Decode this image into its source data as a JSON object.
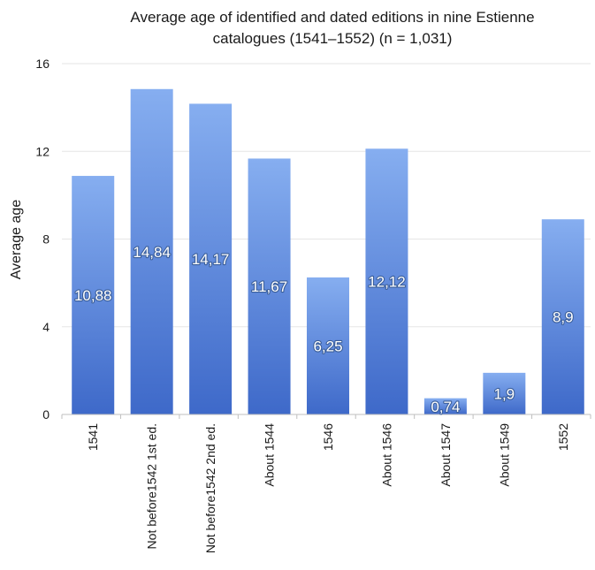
{
  "chart_data": {
    "type": "bar",
    "title": "Average age of identified and dated editions in nine Estienne catalogues (1541–1552) (n = 1,031)",
    "title_lines": [
      "Average age of identified and dated editions in nine Estienne",
      "catalogues (1541–1552) (n = 1,031)"
    ],
    "ylabel": "Average age",
    "xlabel": "",
    "ylim": [
      0,
      16
    ],
    "yticks": [
      0,
      4,
      8,
      12,
      16
    ],
    "grid": true,
    "legend": "none",
    "categories": [
      "1541",
      "Not before1542 1st ed.",
      "Not before1542 2nd ed.",
      "About 1544",
      "1546",
      "About 1546",
      "About 1547",
      "About 1549",
      "1552"
    ],
    "values": [
      10.88,
      14.84,
      14.17,
      11.67,
      6.25,
      12.12,
      0.74,
      1.9,
      8.9
    ],
    "data_labels": [
      "10,88",
      "14,84",
      "14,17",
      "11,67",
      "6,25",
      "12,12",
      "0,74",
      "1,9",
      "8,9"
    ],
    "colors": {
      "bar_top": "#86aef0",
      "bar_bottom": "#3e69c9",
      "label_outline": "#3a5e9a"
    }
  }
}
